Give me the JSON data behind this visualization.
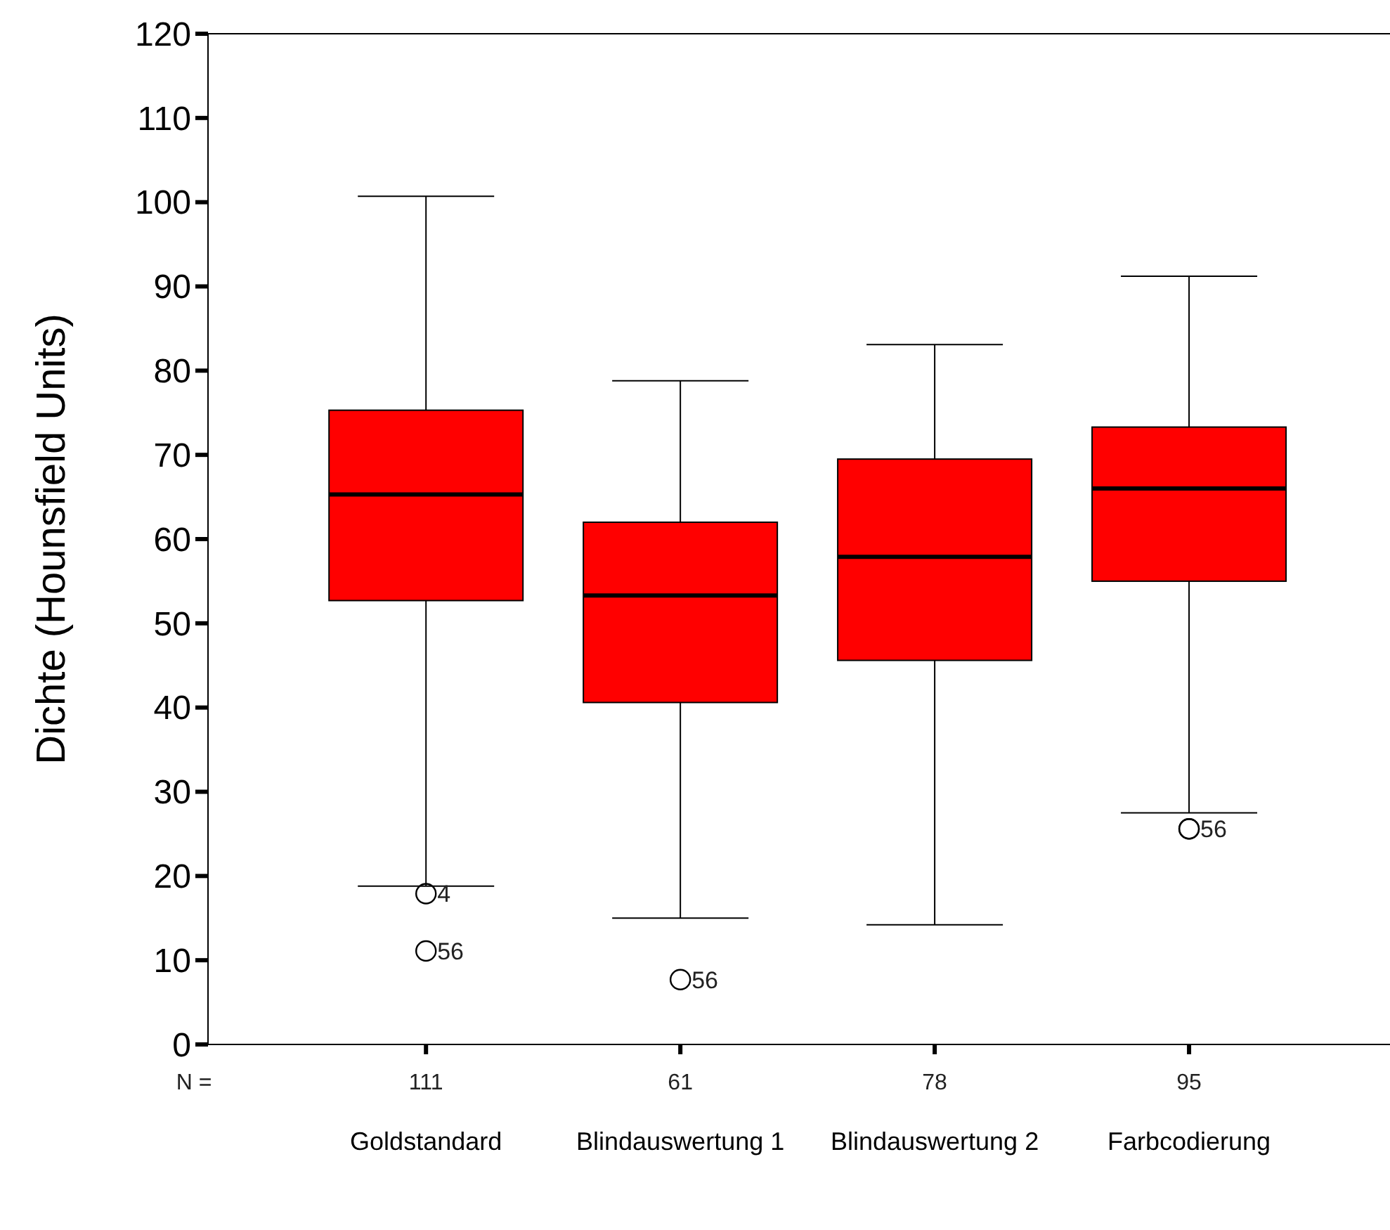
{
  "chart_data": {
    "type": "box",
    "ylabel": "Dichte (Hounsfield Units)",
    "categories": [
      "Goldstandard",
      "Blindauswertung 1",
      "Blindauswertung 2",
      "Farbcodierung"
    ],
    "color": "#ff0000",
    "boxes": [
      {
        "low": 18.8,
        "q1": 52.7,
        "median": 65.3,
        "q3": 75.3,
        "high": 100.7,
        "outliers": [
          17.9,
          11.1
        ]
      },
      {
        "low": 15.0,
        "q1": 40.6,
        "median": 53.3,
        "q3": 62.0,
        "high": 78.8,
        "outliers": [
          7.7
        ]
      },
      {
        "low": 14.2,
        "q1": 45.6,
        "median": 57.9,
        "q3": 69.5,
        "high": 83.1
      },
      {
        "low": 27.5,
        "q1": 55.0,
        "median": 66.0,
        "q3": 73.3,
        "high": 91.2,
        "outliers": [
          25.6,
          25.6
        ]
      }
    ],
    "ylim": [
      0,
      120
    ],
    "yticks": [
      0,
      10,
      20,
      30,
      40,
      50,
      60,
      70,
      80,
      90,
      100,
      110,
      120
    ],
    "grid": false,
    "annotations": [
      "N =",
      {
        "text": "111",
        "x": "Goldstandard"
      },
      {
        "text": "61",
        "x": "Blindauswertung 1"
      },
      {
        "text": "78",
        "x": "Blindauswertung 2"
      },
      {
        "text": "95",
        "x": "Farbcodierung"
      },
      "4",
      "56",
      "56",
      "56"
    ]
  }
}
